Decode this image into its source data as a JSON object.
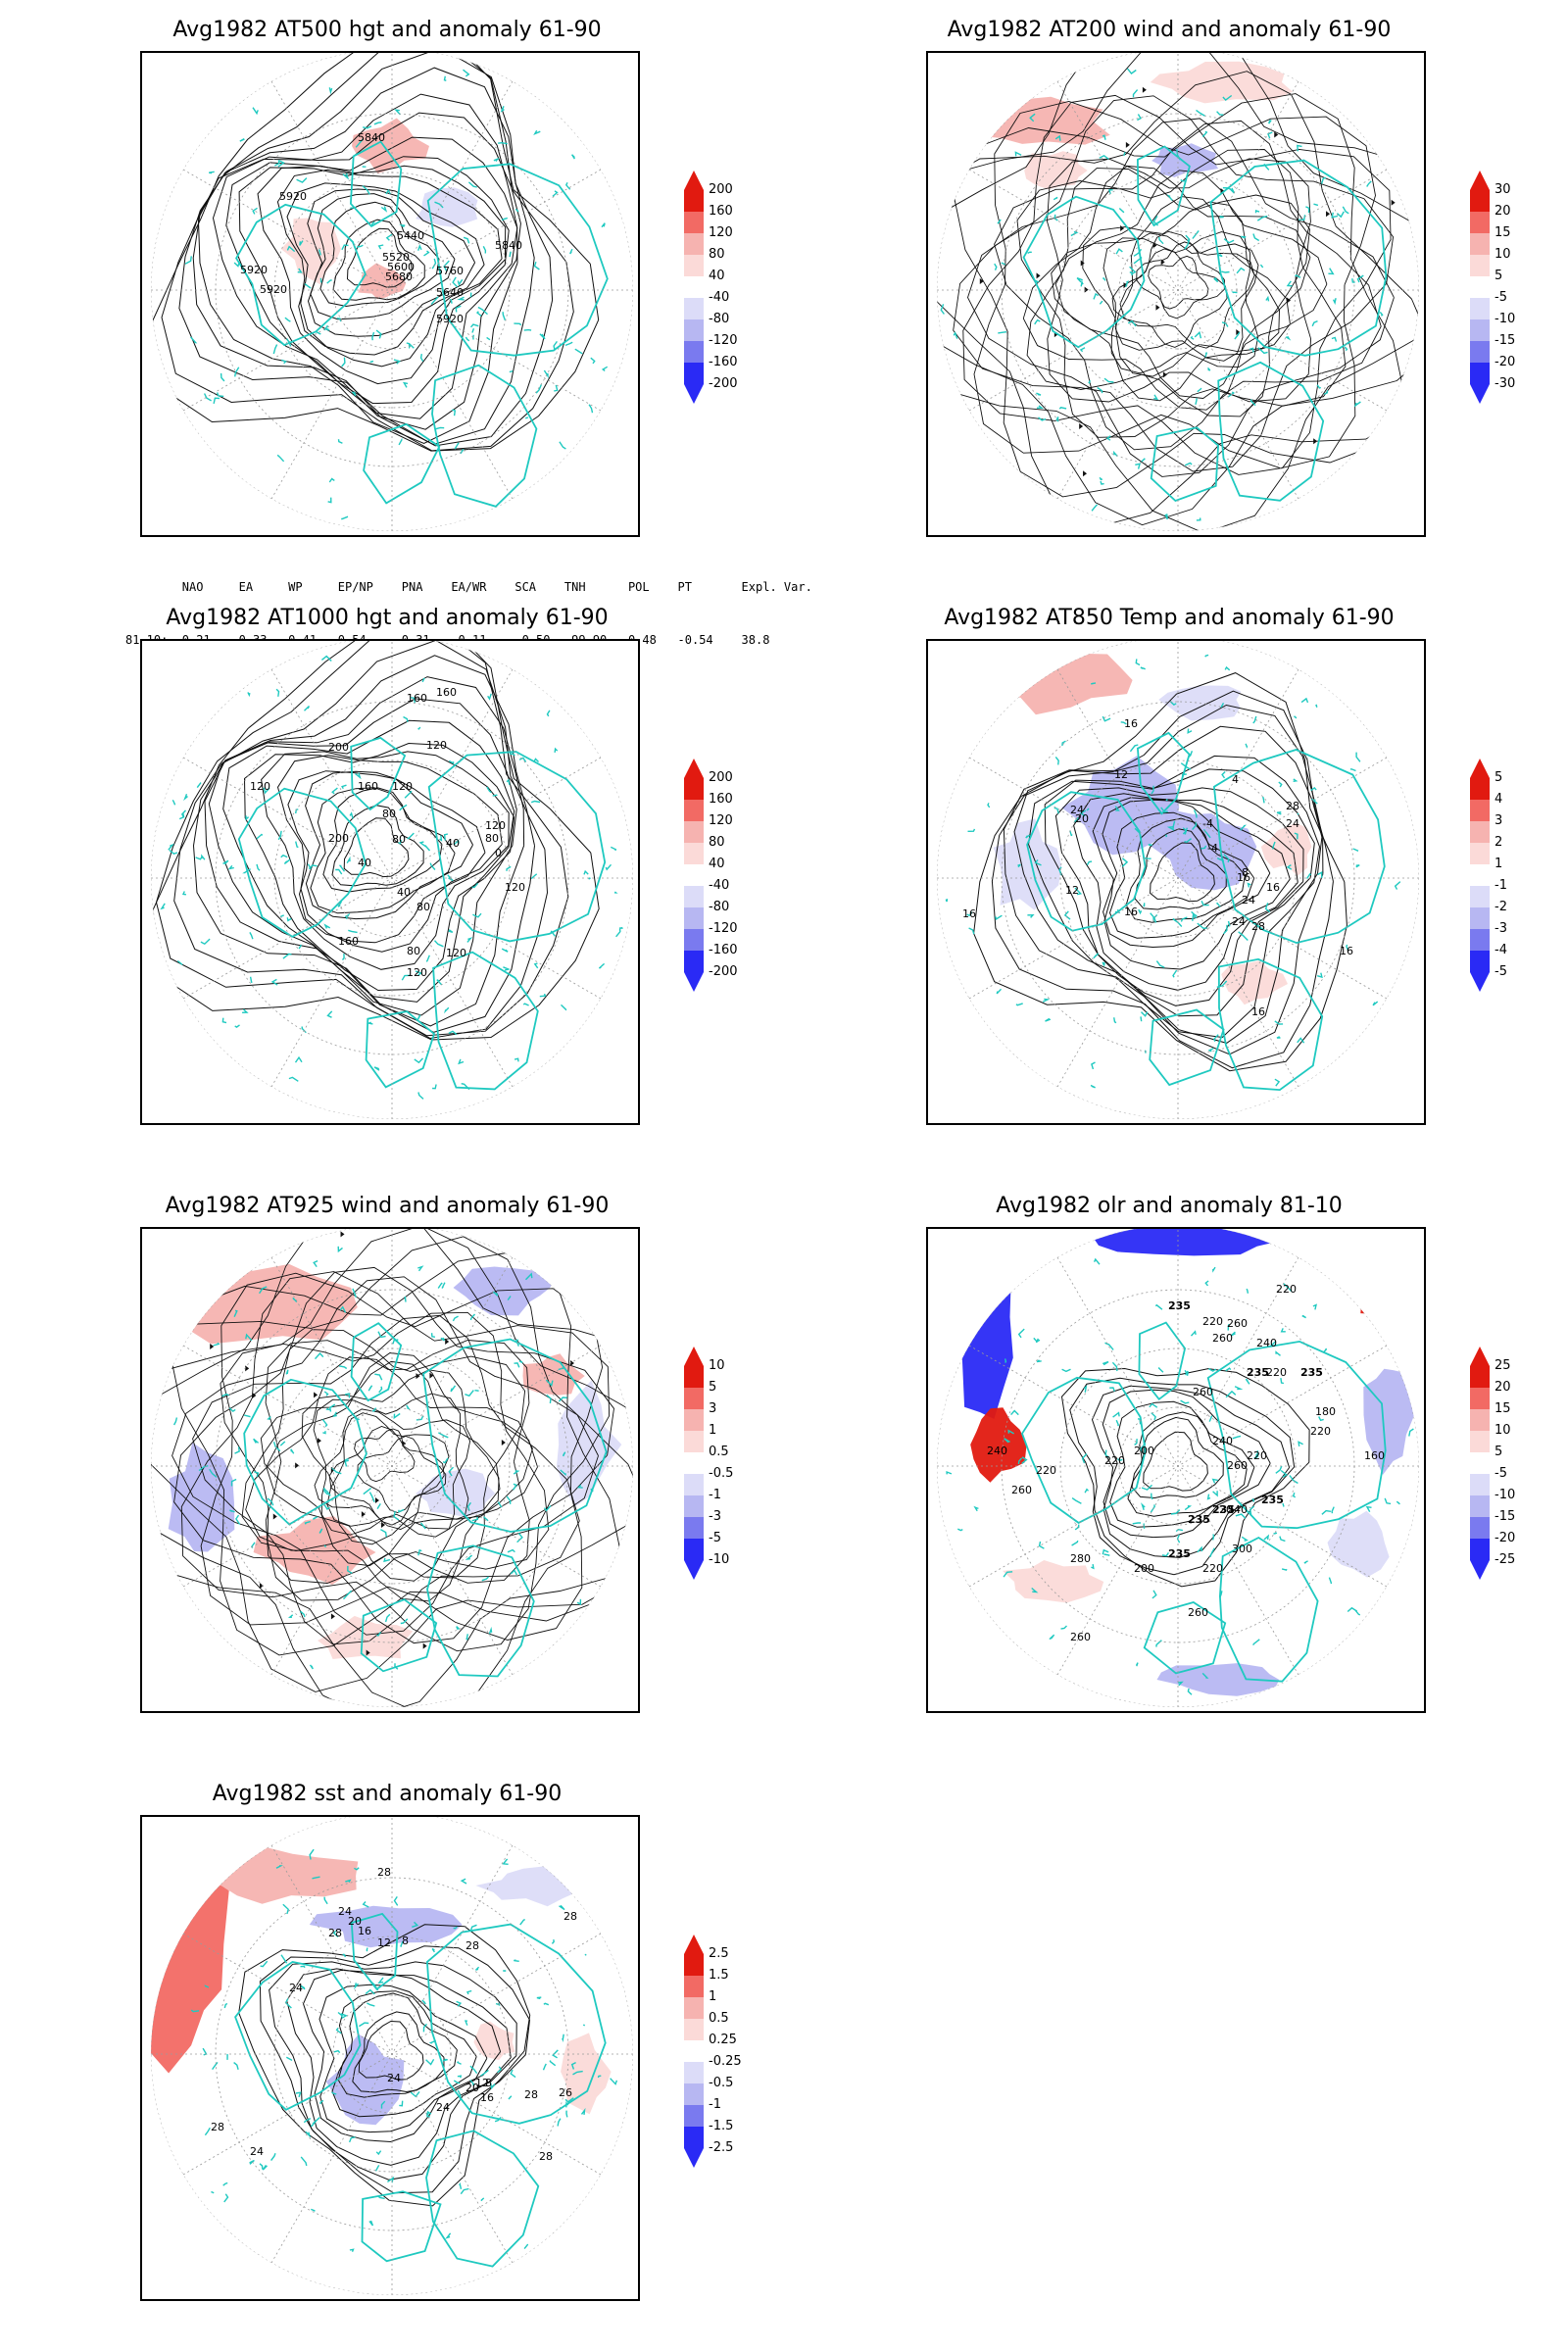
{
  "colors": {
    "coast": "#1fc9c0",
    "contour": "#111111",
    "pos_strong": "#e11a10",
    "pos_mid": "#f26a64",
    "pos_light": "#f6b3b0",
    "pos_faint": "#fbdad8",
    "neg_faint": "#dcdcf8",
    "neg_light": "#b7b7f2",
    "neg_mid": "#7a7aef",
    "neg_strong": "#2a2af5",
    "grid": "#9a9a9a"
  },
  "panels": [
    {
      "id": "at500",
      "title": "Avg1982 AT500 hgt and anomaly 61-90",
      "colorbar": [
        "200",
        "160",
        "120",
        "80",
        "40",
        "-40",
        "-80",
        "-120",
        "-160",
        "-200"
      ],
      "contour_labels": [
        "5840",
        "5920",
        "5440",
        "5520",
        "5600",
        "5680",
        "5760",
        "5640",
        "5840",
        "5920",
        "5920",
        "5920"
      ]
    },
    {
      "id": "at200",
      "title": "Avg1982 AT200 wind and anomaly 61-90",
      "colorbar": [
        "30",
        "20",
        "15",
        "10",
        "5",
        "-5",
        "-10",
        "-15",
        "-20",
        "-30"
      ],
      "contour_labels": []
    },
    {
      "id": "at1000",
      "title": "Avg1982 AT1000 hgt and anomaly 61-90",
      "colorbar": [
        "200",
        "160",
        "120",
        "80",
        "40",
        "-40",
        "-80",
        "-120",
        "-160",
        "-200"
      ],
      "contour_labels": [
        "160",
        "160",
        "200",
        "120",
        "160",
        "120",
        "120",
        "80",
        "80",
        "40",
        "120",
        "80",
        "0",
        "40",
        "120",
        "200",
        "160",
        "80",
        "120",
        "120",
        "80",
        "40"
      ]
    },
    {
      "id": "at850",
      "title": "Avg1982 AT850 Temp and anomaly 61-90",
      "colorbar": [
        "5",
        "4",
        "3",
        "2",
        "1",
        "-1",
        "-2",
        "-3",
        "-4",
        "-5"
      ],
      "contour_labels": [
        "16",
        "12",
        "4",
        "-4",
        "-4",
        "24",
        "20",
        "28",
        "24",
        "16",
        "16",
        "12",
        "16",
        "24",
        "28",
        "8",
        "16",
        "24",
        "16",
        "16"
      ]
    },
    {
      "id": "at925",
      "title": "Avg1982 AT925 wind and anomaly 61-90",
      "colorbar": [
        "10",
        "5",
        "3",
        "1",
        "0.5",
        "-0.5",
        "-1",
        "-3",
        "-5",
        "-10"
      ],
      "contour_labels": []
    },
    {
      "id": "olr",
      "title": "Avg1982 olr and anomaly 81-10",
      "colorbar": [
        "25",
        "20",
        "15",
        "10",
        "5",
        "-5",
        "-10",
        "-15",
        "-20",
        "-25"
      ],
      "contour_labels": [
        "220",
        "235",
        "220",
        "260",
        "240",
        "260",
        "235",
        "235",
        "220",
        "260",
        "240",
        "220",
        "235",
        "235",
        "200",
        "220",
        "220",
        "260",
        "235",
        "240",
        "280",
        "300",
        "220",
        "200",
        "260",
        "235",
        "260",
        "220",
        "180",
        "160",
        "220",
        "240",
        "260"
      ]
    },
    {
      "id": "sst",
      "title": "Avg1982 sst and anomaly 61-90",
      "colorbar": [
        "2.5",
        "1.5",
        "1",
        "0.5",
        "0.25",
        "-0.25",
        "-0.5",
        "-1",
        "-1.5",
        "-2.5"
      ],
      "contour_labels": [
        "28",
        "28",
        "24",
        "20",
        "16",
        "12",
        "8",
        "24",
        "28",
        "28",
        "26",
        "28",
        "24",
        "20",
        "16",
        "12",
        "8",
        "24",
        "24",
        "28",
        "28"
      ]
    }
  ],
  "indices": {
    "headers": [
      "NAO",
      "EA",
      "WP",
      "EP/NP",
      "PNA",
      "EA/WR",
      "SCA",
      "TNH",
      "POL",
      "PT",
      "Expl. Var."
    ],
    "row_label": "81-10:",
    "values": [
      "0.21",
      "0.33",
      "0.41",
      "0.54",
      "0.31",
      "-0.11",
      "-0.50",
      "-99.90",
      "0.48",
      "-0.54",
      "38.8"
    ]
  }
}
